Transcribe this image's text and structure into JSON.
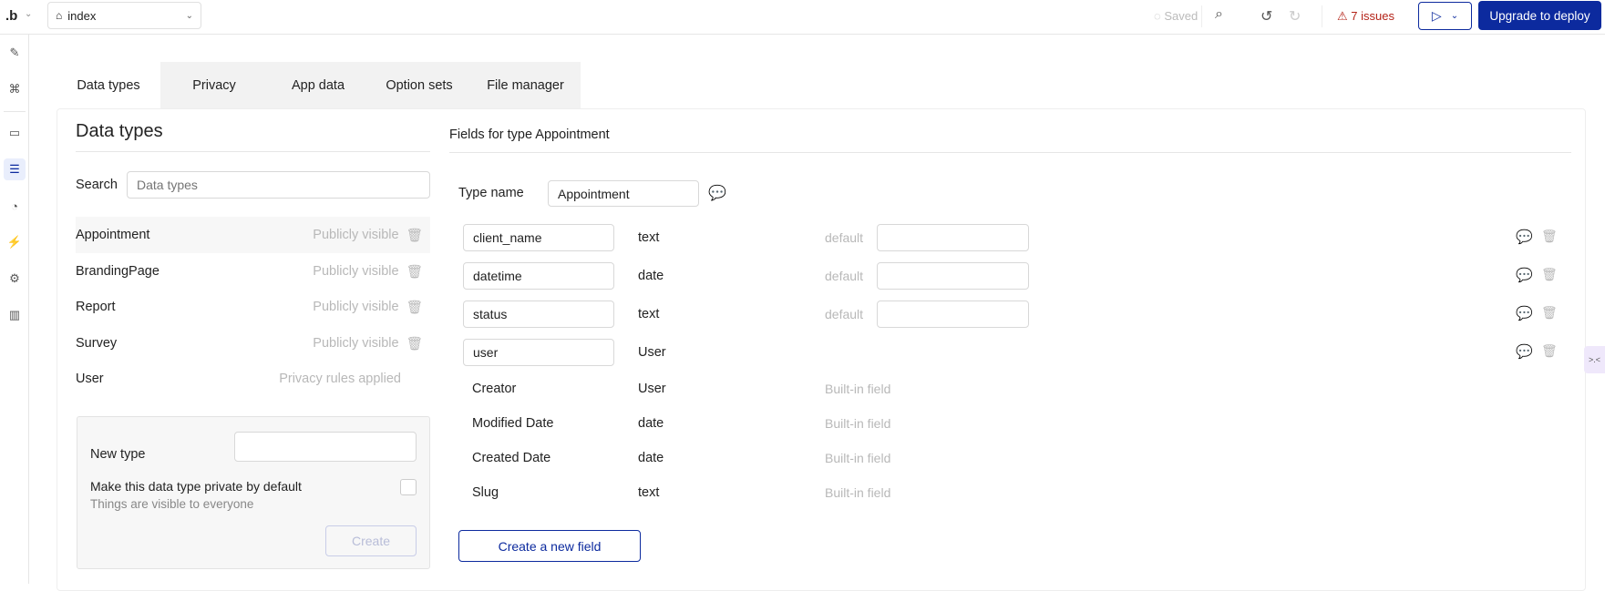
{
  "topbar": {
    "logo": ".b",
    "page_selector": "index",
    "saved": "Saved",
    "issues": "7 issues",
    "upgrade": "Upgrade to deploy"
  },
  "sidebar": {
    "items": [
      "design",
      "workflow",
      "elements",
      "data",
      "styles",
      "plugins",
      "settings",
      "logs"
    ],
    "active": "data"
  },
  "tabs": [
    {
      "label": "Data types"
    },
    {
      "label": "Privacy"
    },
    {
      "label": "App data"
    },
    {
      "label": "Option sets"
    },
    {
      "label": "File manager"
    }
  ],
  "left": {
    "title": "Data types",
    "search_label": "Search",
    "search_placeholder": "Data types",
    "types": [
      {
        "name": "Appointment",
        "status": "Publicly visible",
        "deletable": true
      },
      {
        "name": "BrandingPage",
        "status": "Publicly visible",
        "deletable": true
      },
      {
        "name": "Report",
        "status": "Publicly visible",
        "deletable": true
      },
      {
        "name": "Survey",
        "status": "Publicly visible",
        "deletable": true
      },
      {
        "name": "User",
        "status": "Privacy rules applied",
        "deletable": false
      }
    ],
    "new_type": {
      "label": "New type",
      "value": "",
      "private_label": "Make this data type private by default",
      "private_sub": "Things are visible to everyone",
      "create": "Create"
    }
  },
  "right": {
    "title": "Fields for type Appointment",
    "type_name_label": "Type name",
    "type_name": "Appointment",
    "fields": [
      {
        "name": "client_name",
        "type": "text",
        "default_label": "default",
        "default": ""
      },
      {
        "name": "datetime",
        "type": "date",
        "default_label": "default",
        "default": ""
      },
      {
        "name": "status",
        "type": "text",
        "default_label": "default",
        "default": ""
      },
      {
        "name": "user",
        "type": "User"
      }
    ],
    "builtin": [
      {
        "name": "Creator",
        "type": "User",
        "note": "Built-in field"
      },
      {
        "name": "Modified Date",
        "type": "date",
        "note": "Built-in field"
      },
      {
        "name": "Created Date",
        "type": "date",
        "note": "Built-in field"
      },
      {
        "name": "Slug",
        "type": "text",
        "note": "Built-in field"
      }
    ],
    "create_field": "Create a new field"
  },
  "colors": {
    "primary": "#0c2a9e",
    "danger": "#b42318",
    "muted": "#b8b8b8"
  }
}
